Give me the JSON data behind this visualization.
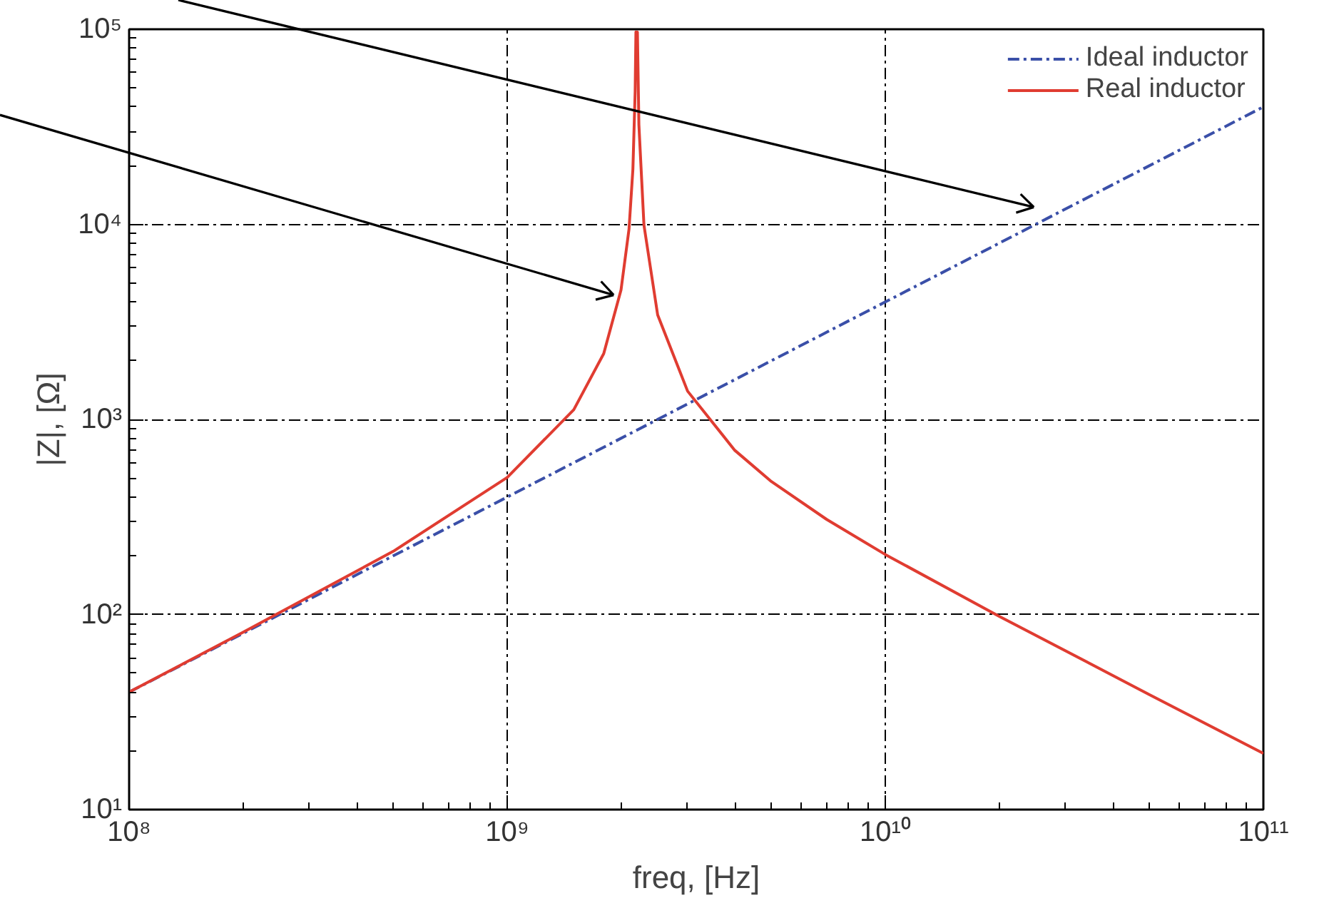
{
  "chart_data": {
    "type": "line",
    "xlabel": "freq, [Hz]",
    "ylabel": "|Z|, [Ω]",
    "log": "xy",
    "grid": true,
    "legend": "top right",
    "xlim": [
      100000000.0,
      100000000000.0
    ],
    "ylim": [
      10,
      100000
    ],
    "xticks": [
      {
        "value": 100000000.0,
        "label": "10⁸"
      },
      {
        "value": 1000000000.0,
        "label": "10⁹"
      },
      {
        "value": 10000000000.0,
        "label": "10¹⁰"
      },
      {
        "value": 100000000000.0,
        "label": "10¹¹"
      }
    ],
    "yticks": [
      {
        "value": 10,
        "label": "10¹"
      },
      {
        "value": 100,
        "label": "10²"
      },
      {
        "value": 1000,
        "label": "10³"
      },
      {
        "value": 10000,
        "label": "10⁴"
      },
      {
        "value": 100000,
        "label": "10⁵"
      }
    ],
    "series": [
      {
        "name": "Ideal inductor",
        "color": "#3a4fa8",
        "line_style": "dashed",
        "x": [
          100000000.0,
          1000000000.0,
          10000000000.0,
          100000000000.0
        ],
        "values": [
          40,
          400,
          4000,
          40000
        ]
      },
      {
        "name": "Real inductor",
        "color": "#e03c31",
        "line_style": "solid",
        "x": [
          100000000.0,
          200000000.0,
          500000000.0,
          1000000000.0,
          1500000000.0,
          1800000000.0,
          2000000000.0,
          2100000000.0,
          2150000000.0,
          2180000000.0,
          2190000000.0,
          2210000000.0,
          2230000000.0,
          2300000000.0,
          2500000000.0,
          3000000000.0,
          4000000000.0,
          5000000000.0,
          7000000000.0,
          10000000000.0,
          20000000000.0,
          50000000000.0,
          100000000000.0
        ],
        "values": [
          40,
          81,
          211,
          504,
          1121,
          2175,
          4608,
          9460,
          19150,
          48180,
          96800,
          96700,
          32400,
          9890,
          3433,
          1396,
          694,
          480,
          307,
          203,
          98,
          38.8,
          19.4
        ]
      }
    ]
  }
}
